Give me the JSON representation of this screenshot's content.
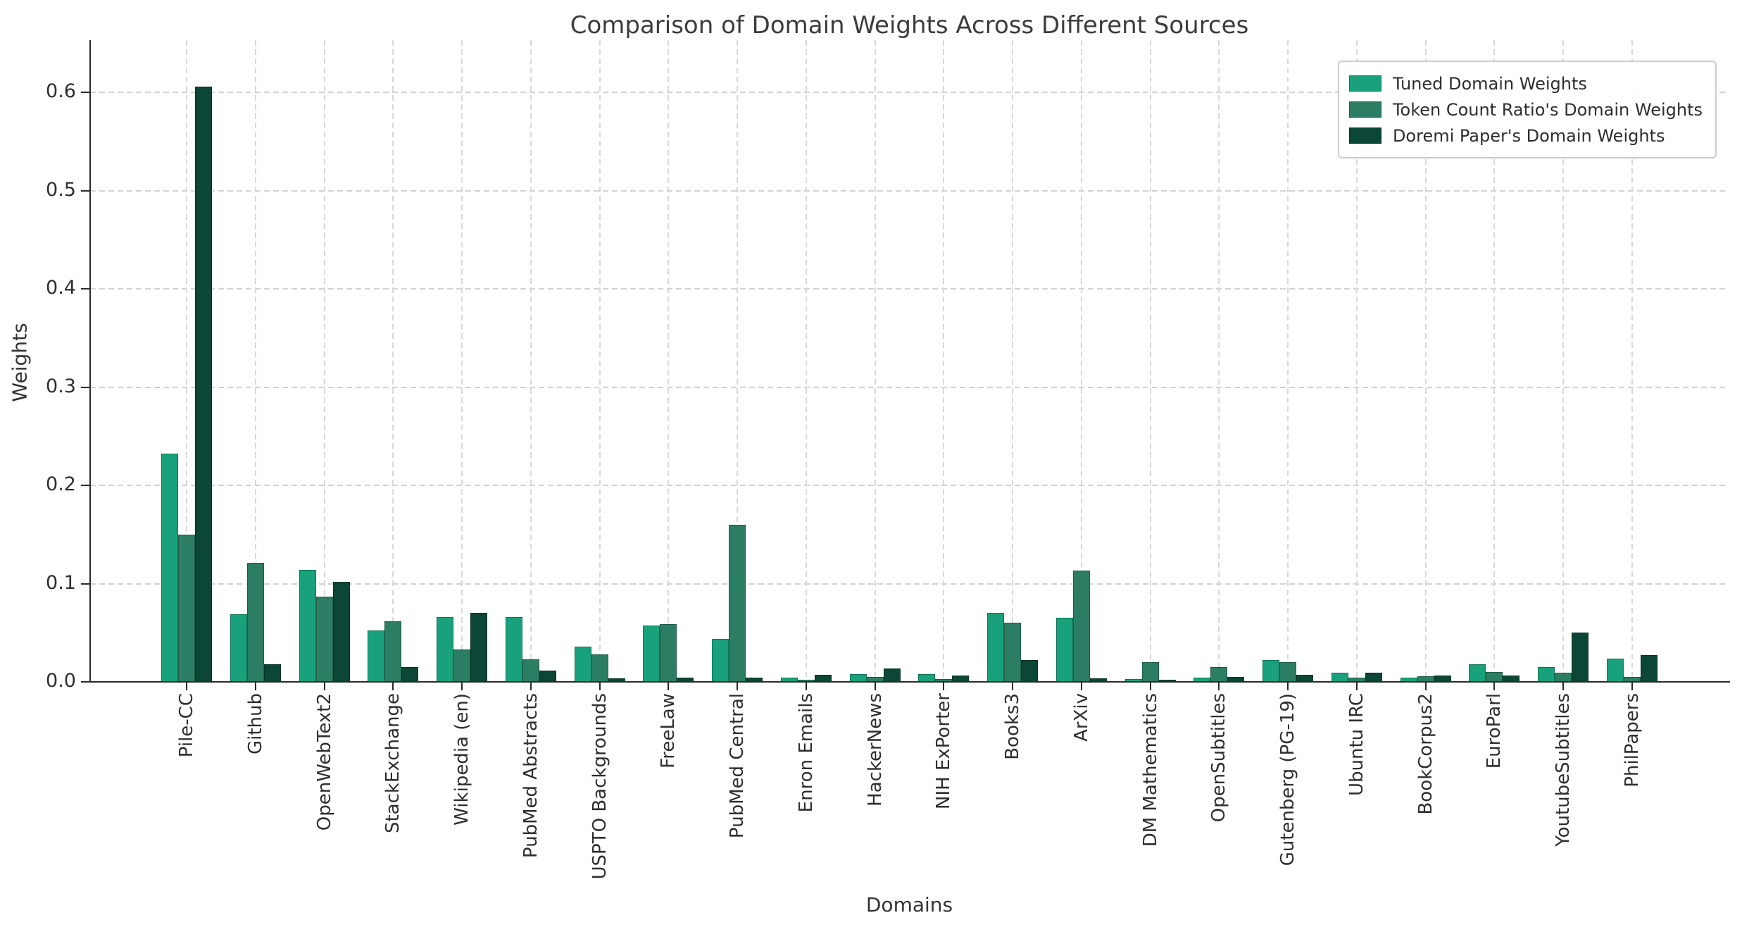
{
  "title": "Comparison of Domain Weights Across Different Sources",
  "axes": {
    "x_label": "Domains",
    "y_label": "Weights",
    "y_tick_labels": [
      "0.0",
      "0.1",
      "0.2",
      "0.3",
      "0.4",
      "0.5",
      "0.6"
    ]
  },
  "legend": {
    "position": "upper right",
    "entries": [
      {
        "label": "Tuned Domain Weights",
        "color": "#18a17a"
      },
      {
        "label": "Token Count Ratio's Domain Weights",
        "color": "#2b7e64"
      },
      {
        "label": "Doremi Paper's Domain Weights",
        "color": "#0b4636"
      }
    ]
  },
  "colors": {
    "background": "#ffffff",
    "grid": "#d2d2d2",
    "spine": "#2b2b2b",
    "title_text": "#3c3c3c",
    "tick_text": "#2e2e2e"
  },
  "chart_data": {
    "type": "bar",
    "title": "Comparison of Domain Weights Across Different Sources",
    "xlabel": "Domains",
    "ylabel": "Weights",
    "ylim": [
      0,
      0.653
    ],
    "y_ticks": [
      0.0,
      0.1,
      0.2,
      0.3,
      0.4,
      0.5,
      0.6
    ],
    "grid": "dashed, horizontal and vertical",
    "legend_position": "upper right",
    "categories": [
      "Pile-CC",
      "Github",
      "OpenWebText2",
      "StackExchange",
      "Wikipedia (en)",
      "PubMed Abstracts",
      "USPTO Backgrounds",
      "FreeLaw",
      "PubMed Central",
      "Enron Emails",
      "HackerNews",
      "NIH ExPorter",
      "Books3",
      "ArXiv",
      "DM Mathematics",
      "OpenSubtitles",
      "Gutenberg (PG-19)",
      "Ubuntu IRC",
      "BookCorpus2",
      "EuroParl",
      "YoutubeSubtitles",
      "PhilPapers"
    ],
    "series": [
      {
        "name": "Tuned Domain Weights",
        "color": "#18a17a",
        "values": [
          0.232,
          0.069,
          0.114,
          0.052,
          0.066,
          0.066,
          0.036,
          0.057,
          0.044,
          0.004,
          0.008,
          0.008,
          0.07,
          0.065,
          0.003,
          0.004,
          0.022,
          0.009,
          0.004,
          0.018,
          0.015,
          0.024
        ]
      },
      {
        "name": "Token Count Ratio's Domain Weights",
        "color": "#2b7e64",
        "values": [
          0.15,
          0.121,
          0.087,
          0.062,
          0.033,
          0.023,
          0.028,
          0.059,
          0.16,
          0.002,
          0.005,
          0.003,
          0.06,
          0.113,
          0.02,
          0.015,
          0.02,
          0.004,
          0.006,
          0.01,
          0.009,
          0.005
        ]
      },
      {
        "name": "Doremi Paper's Domain Weights",
        "color": "#0b4636",
        "values": [
          0.6057,
          0.0179,
          0.1019,
          0.0153,
          0.0699,
          0.0113,
          0.0036,
          0.0043,
          0.0046,
          0.007,
          0.0134,
          0.0063,
          0.0224,
          0.0036,
          0.0018,
          0.0047,
          0.0072,
          0.0093,
          0.0061,
          0.0062,
          0.0502,
          0.0274
        ]
      }
    ]
  }
}
